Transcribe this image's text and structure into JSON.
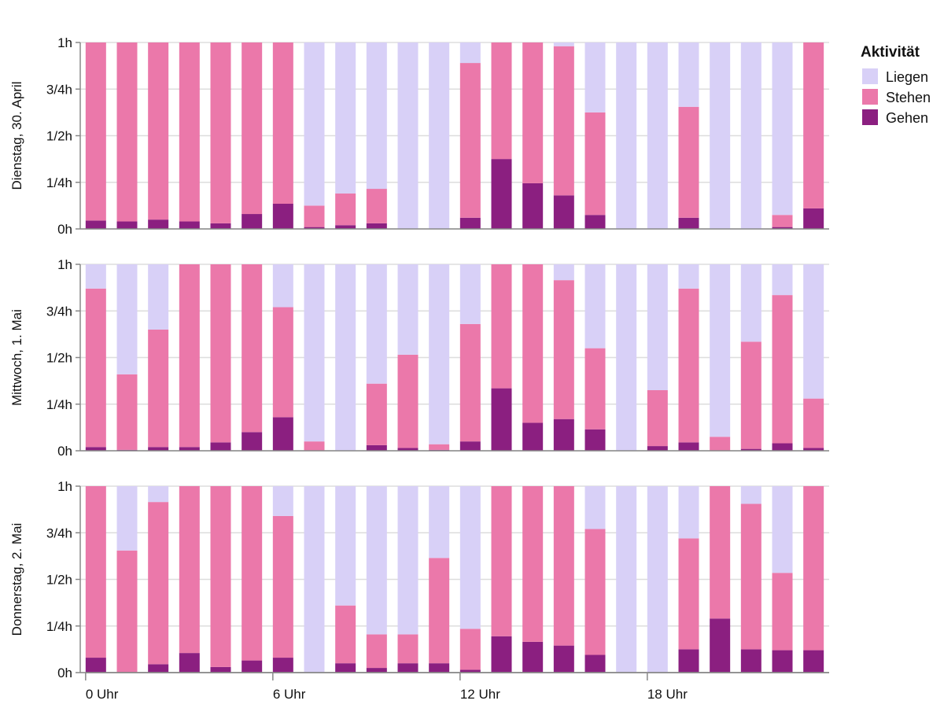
{
  "chart_data": {
    "type": "bar",
    "stacked": true,
    "grid": true,
    "legend_position": "top-right",
    "legend": {
      "title": "Aktivität",
      "items": [
        {
          "name": "Liegen",
          "color": "#d8d0f7"
        },
        {
          "name": "Stehen",
          "color": "#eb78aa"
        },
        {
          "name": "Gehen",
          "color": "#8b1f80"
        }
      ]
    },
    "y_ticks": [
      "0h",
      "1/4h",
      "1/2h",
      "3/4h",
      "1h"
    ],
    "ylim": [
      0,
      1
    ],
    "x_ticks": [
      {
        "hour": 0,
        "label": "0 Uhr"
      },
      {
        "hour": 6,
        "label": "6 Uhr"
      },
      {
        "hour": 12,
        "label": "12 Uhr"
      },
      {
        "hour": 18,
        "label": "18 Uhr"
      }
    ],
    "hours": [
      0,
      1,
      2,
      3,
      4,
      5,
      6,
      7,
      8,
      9,
      10,
      11,
      12,
      13,
      14,
      15,
      16,
      17,
      18,
      19,
      20,
      21,
      22,
      23
    ],
    "rows": [
      {
        "label": "Dienstag, 30. April",
        "gehen": [
          0.045,
          0.04,
          0.05,
          0.04,
          0.03,
          0.08,
          0.135,
          0.01,
          0.02,
          0.03,
          0,
          0,
          0.06,
          0.375,
          0.245,
          0.18,
          0.075,
          0,
          0,
          0.06,
          0,
          0,
          0.01,
          0.11
        ],
        "stehen": [
          0.955,
          0.96,
          0.95,
          0.96,
          0.97,
          0.92,
          0.865,
          0.115,
          0.17,
          0.185,
          0,
          0,
          0.83,
          0.625,
          0.755,
          0.8,
          0.55,
          0,
          0,
          0.595,
          0,
          0,
          0.065,
          0.89
        ],
        "liegen": [
          0,
          0,
          0,
          0,
          0,
          0,
          0,
          0.875,
          0.81,
          0.785,
          1,
          1,
          0.11,
          0,
          0,
          0.02,
          0.375,
          1,
          1,
          0.345,
          1,
          1,
          0.925,
          0
        ]
      },
      {
        "label": "Mittwoch, 1. Mai",
        "gehen": [
          0.02,
          0.005,
          0.02,
          0.02,
          0.045,
          0.1,
          0.18,
          0,
          0,
          0.03,
          0.015,
          0.005,
          0.05,
          0.335,
          0.15,
          0.17,
          0.115,
          0,
          0.025,
          0.045,
          0,
          0.01,
          0.04,
          0.015
        ],
        "stehen": [
          0.85,
          0.405,
          0.63,
          0.98,
          0.955,
          0.9,
          0.59,
          0.05,
          0,
          0.33,
          0.5,
          0.03,
          0.63,
          0.665,
          0.85,
          0.745,
          0.435,
          0,
          0.3,
          0.825,
          0.075,
          0.575,
          0.795,
          0.265
        ],
        "liegen": [
          0.13,
          0.59,
          0.35,
          0,
          0,
          0,
          0.23,
          0.95,
          1,
          0.64,
          0.485,
          0.965,
          0.32,
          0,
          0,
          0.085,
          0.45,
          1,
          0.675,
          0.13,
          0.925,
          0.415,
          0.165,
          0.72
        ]
      },
      {
        "label": "Donnerstag, 2. Mai",
        "gehen": [
          0.08,
          0,
          0.045,
          0.105,
          0.03,
          0.065,
          0.08,
          0,
          0.05,
          0.025,
          0.05,
          0.05,
          0.015,
          0.195,
          0.165,
          0.145,
          0.095,
          0,
          0,
          0.125,
          0.29,
          0.125,
          0.12,
          0.12
        ],
        "stehen": [
          0.92,
          0.655,
          0.87,
          0.895,
          0.97,
          0.935,
          0.76,
          0,
          0.31,
          0.18,
          0.155,
          0.565,
          0.22,
          0.805,
          0.835,
          0.855,
          0.675,
          0,
          0,
          0.595,
          0.71,
          0.78,
          0.415,
          0.88
        ],
        "liegen": [
          0,
          0.345,
          0.085,
          0,
          0,
          0,
          0.16,
          1,
          0.64,
          0.795,
          0.795,
          0.385,
          0.765,
          0,
          0,
          0,
          0.23,
          1,
          1,
          0.28,
          0,
          0.095,
          0.465,
          0
        ]
      }
    ]
  }
}
